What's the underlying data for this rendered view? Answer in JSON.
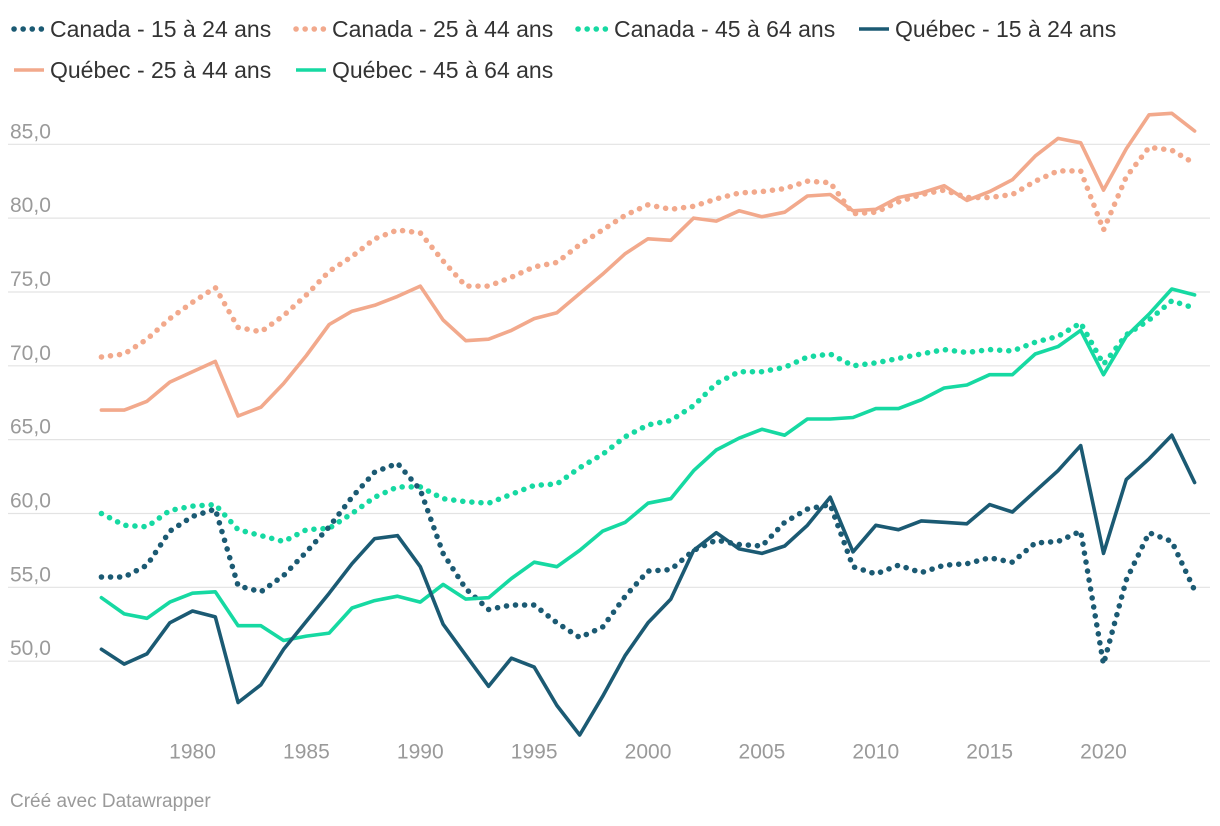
{
  "chart_data": {
    "type": "line",
    "title": "",
    "xlabel": "",
    "ylabel": "",
    "y_ticks": [
      50,
      55,
      60,
      65,
      70,
      75,
      80,
      85
    ],
    "y_tick_labels": [
      "50,0",
      "55,0",
      "60,0",
      "65,0",
      "70,0",
      "75,0",
      "80,0",
      "85,0"
    ],
    "x_ticks": [
      1980,
      1985,
      1990,
      1995,
      2000,
      2005,
      2010,
      2015,
      2020
    ],
    "x_tick_labels": [
      "1980",
      "1985",
      "1990",
      "1995",
      "2000",
      "2005",
      "2010",
      "2015",
      "2020"
    ],
    "xlim": [
      1974.4,
      2024.5
    ],
    "ylim": [
      45.0,
      88.0
    ],
    "legend_position": "top",
    "x": [
      1976,
      1977,
      1978,
      1979,
      1980,
      1981,
      1982,
      1983,
      1984,
      1985,
      1986,
      1987,
      1988,
      1989,
      1990,
      1991,
      1992,
      1993,
      1994,
      1995,
      1996,
      1997,
      1998,
      1999,
      2000,
      2001,
      2002,
      2003,
      2004,
      2005,
      2006,
      2007,
      2008,
      2009,
      2010,
      2011,
      2012,
      2013,
      2014,
      2015,
      2016,
      2017,
      2018,
      2019,
      2020,
      2021,
      2022,
      2023,
      2024
    ],
    "series": [
      {
        "name": "Canada - 15 à 24 ans",
        "color": "#1b5a73",
        "dash": "dotted",
        "values": [
          55.7,
          55.7,
          56.5,
          58.8,
          59.8,
          60.3,
          55.1,
          54.7,
          55.8,
          57.4,
          59.1,
          61.1,
          62.8,
          63.4,
          61.6,
          57.3,
          54.9,
          53.5,
          53.8,
          53.8,
          52.6,
          51.6,
          52.3,
          54.4,
          56.1,
          56.2,
          57.5,
          58.2,
          57.9,
          57.8,
          59.4,
          60.3,
          60.6,
          56.4,
          55.9,
          56.5,
          56.0,
          56.5,
          56.6,
          57.0,
          56.7,
          58.0,
          58.1,
          58.8,
          49.8,
          55.5,
          58.7,
          58.1,
          54.8
        ]
      },
      {
        "name": "Canada - 25 à 44 ans",
        "color": "#f2a98c",
        "dash": "dotted",
        "values": [
          70.6,
          70.8,
          71.8,
          73.2,
          74.3,
          75.3,
          72.6,
          72.3,
          73.4,
          74.8,
          76.4,
          77.4,
          78.6,
          79.2,
          79.0,
          77.1,
          75.4,
          75.4,
          76.0,
          76.7,
          77.0,
          78.2,
          79.2,
          80.2,
          80.9,
          80.6,
          80.8,
          81.3,
          81.7,
          81.8,
          82.0,
          82.5,
          82.4,
          80.3,
          80.4,
          81.1,
          81.6,
          81.9,
          81.4,
          81.4,
          81.6,
          82.5,
          83.2,
          83.2,
          79.2,
          82.8,
          84.8,
          84.6,
          83.7
        ]
      },
      {
        "name": "Canada - 45 à 64 ans",
        "color": "#16d9a2",
        "dash": "dotted",
        "values": [
          60.0,
          59.2,
          59.1,
          60.2,
          60.5,
          60.6,
          58.9,
          58.5,
          58.1,
          58.9,
          59.0,
          60.0,
          61.1,
          61.8,
          61.8,
          61.0,
          60.8,
          60.7,
          61.3,
          61.9,
          62.0,
          63.1,
          64.0,
          65.2,
          66.0,
          66.3,
          67.3,
          68.8,
          69.6,
          69.6,
          69.9,
          70.6,
          70.8,
          70.0,
          70.2,
          70.5,
          70.8,
          71.1,
          70.9,
          71.1,
          71.0,
          71.6,
          72.0,
          72.9,
          70.1,
          72.1,
          73.1,
          74.4,
          73.9
        ]
      },
      {
        "name": "Québec - 15 à 24 ans",
        "color": "#1b5a73",
        "dash": "solid",
        "values": [
          50.8,
          49.8,
          50.5,
          52.6,
          53.4,
          53.0,
          47.2,
          48.4,
          50.8,
          52.7,
          54.6,
          56.6,
          58.3,
          58.5,
          56.4,
          52.5,
          50.4,
          48.3,
          50.2,
          49.6,
          47.0,
          45.0,
          47.6,
          50.4,
          52.6,
          54.2,
          57.5,
          58.7,
          57.6,
          57.3,
          57.8,
          59.2,
          61.1,
          57.4,
          59.2,
          58.9,
          59.5,
          59.4,
          59.3,
          60.6,
          60.1,
          61.5,
          62.9,
          64.6,
          57.3,
          62.3,
          63.7,
          65.3,
          62.1
        ]
      },
      {
        "name": "Québec - 25 à 44 ans",
        "color": "#f2a98c",
        "dash": "solid",
        "values": [
          67.0,
          67.0,
          67.6,
          68.9,
          69.6,
          70.3,
          66.6,
          67.2,
          68.8,
          70.7,
          72.8,
          73.7,
          74.1,
          74.7,
          75.4,
          73.1,
          71.7,
          71.8,
          72.4,
          73.2,
          73.6,
          74.9,
          76.2,
          77.6,
          78.6,
          78.5,
          80.0,
          79.8,
          80.5,
          80.1,
          80.4,
          81.5,
          81.6,
          80.5,
          80.6,
          81.4,
          81.7,
          82.2,
          81.2,
          81.8,
          82.6,
          84.2,
          85.4,
          85.1,
          81.9,
          84.7,
          87.0,
          87.1,
          85.9
        ]
      },
      {
        "name": "Québec - 45 à 64 ans",
        "color": "#16d9a2",
        "dash": "solid",
        "values": [
          54.3,
          53.2,
          52.9,
          54.0,
          54.6,
          54.7,
          52.4,
          52.4,
          51.4,
          51.7,
          51.9,
          53.6,
          54.1,
          54.4,
          54.0,
          55.2,
          54.2,
          54.3,
          55.6,
          56.7,
          56.4,
          57.5,
          58.8,
          59.4,
          60.7,
          61.0,
          62.9,
          64.3,
          65.1,
          65.7,
          65.3,
          66.4,
          66.4,
          66.5,
          67.1,
          67.1,
          67.7,
          68.5,
          68.7,
          69.4,
          69.4,
          70.8,
          71.3,
          72.4,
          69.4,
          72.0,
          73.5,
          75.2,
          74.8
        ]
      }
    ]
  },
  "credit": "Créé avec Datawrapper"
}
